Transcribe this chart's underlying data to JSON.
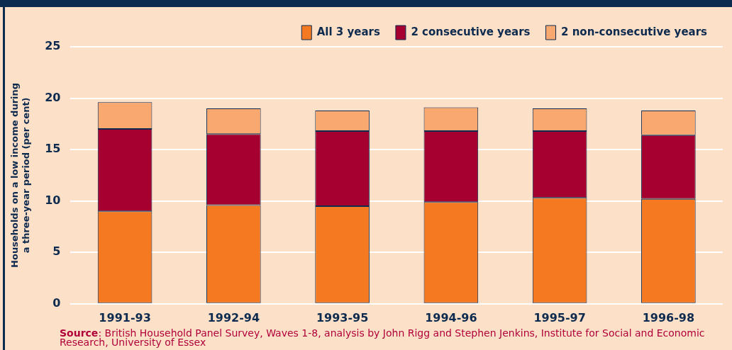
{
  "chart_data": {
    "type": "bar",
    "stacked": true,
    "categories": [
      "1991-93",
      "1992-94",
      "1993-95",
      "1994-96",
      "1995-97",
      "1996-98"
    ],
    "series": [
      {
        "name": "All 3 years",
        "color": "#f47920",
        "values": [
          9.0,
          9.6,
          9.5,
          9.9,
          10.3,
          10.2
        ]
      },
      {
        "name": "2 consecutive years",
        "color": "#a50030",
        "values": [
          8.0,
          6.9,
          7.3,
          6.9,
          6.5,
          6.2
        ]
      },
      {
        "name": "2 non-consecutive years",
        "color": "#f9a870",
        "values": [
          2.6,
          2.5,
          2.0,
          2.3,
          2.2,
          2.4
        ]
      }
    ],
    "ylabel": "Households on a low income during\na three-year period (per cent)",
    "ylim": [
      0,
      25
    ],
    "yticks": [
      0,
      5,
      10,
      15,
      20,
      25
    ],
    "grid": "y",
    "legend": "top right",
    "annotations": [
      "Source: British Household Panel Survey, Waves 1-8, analysis by John Rigg and Stephen Jenkins, Institute for Social and Economic Research, University of Essex"
    ]
  }
}
